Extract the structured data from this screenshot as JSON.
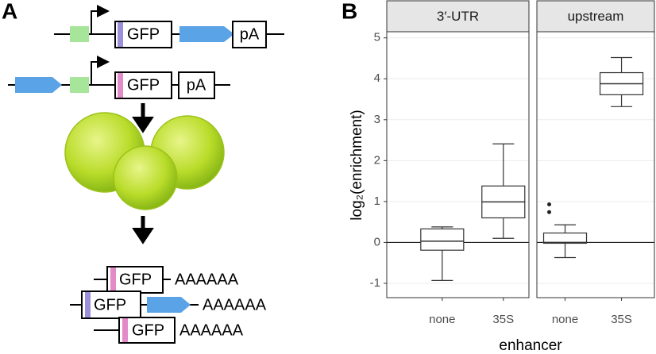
{
  "panel_a": {
    "label": "A",
    "constructs": [
      {
        "gene": "GFP",
        "terminator": "pA"
      },
      {
        "gene": "GFP",
        "terminator": "pA"
      }
    ],
    "products": [
      {
        "gene": "GFP",
        "tail": "AAAAAA"
      },
      {
        "gene": "GFP",
        "tail": "AAAAAA"
      },
      {
        "gene": "GFP",
        "tail": "AAAAAA"
      }
    ]
  },
  "panel_b": {
    "label": "B",
    "y_label": "log₂(enrichment)",
    "x_label": "enhancer"
  },
  "chart_data": [
    {
      "type": "box",
      "title": "3′-UTR",
      "categories": [
        "none",
        "35S"
      ],
      "boxes": [
        {
          "min": -0.93,
          "q1": -0.19,
          "median": 0.03,
          "q3": 0.33,
          "max": 0.38,
          "outliers": []
        },
        {
          "min": 0.1,
          "q1": 0.6,
          "median": 0.99,
          "q3": 1.38,
          "max": 2.41,
          "outliers": []
        }
      ],
      "ylim": [
        -1.35,
        5.15
      ],
      "yticks": [
        -1,
        0,
        1,
        2,
        3,
        4,
        5
      ],
      "hline": 0,
      "grid": true
    },
    {
      "type": "box",
      "title": "upstream",
      "categories": [
        "none",
        "35S"
      ],
      "boxes": [
        {
          "min": -0.37,
          "q1": -0.02,
          "median": 0.0,
          "q3": 0.23,
          "max": 0.43,
          "outliers": [
            0.74,
            0.93
          ]
        },
        {
          "min": 3.32,
          "q1": 3.61,
          "median": 3.88,
          "q3": 4.15,
          "max": 4.52,
          "outliers": []
        }
      ],
      "ylim": [
        -1.35,
        5.15
      ],
      "yticks": [
        -1,
        0,
        1,
        2,
        3,
        4,
        5
      ],
      "hline": 0,
      "grid": true
    }
  ]
}
